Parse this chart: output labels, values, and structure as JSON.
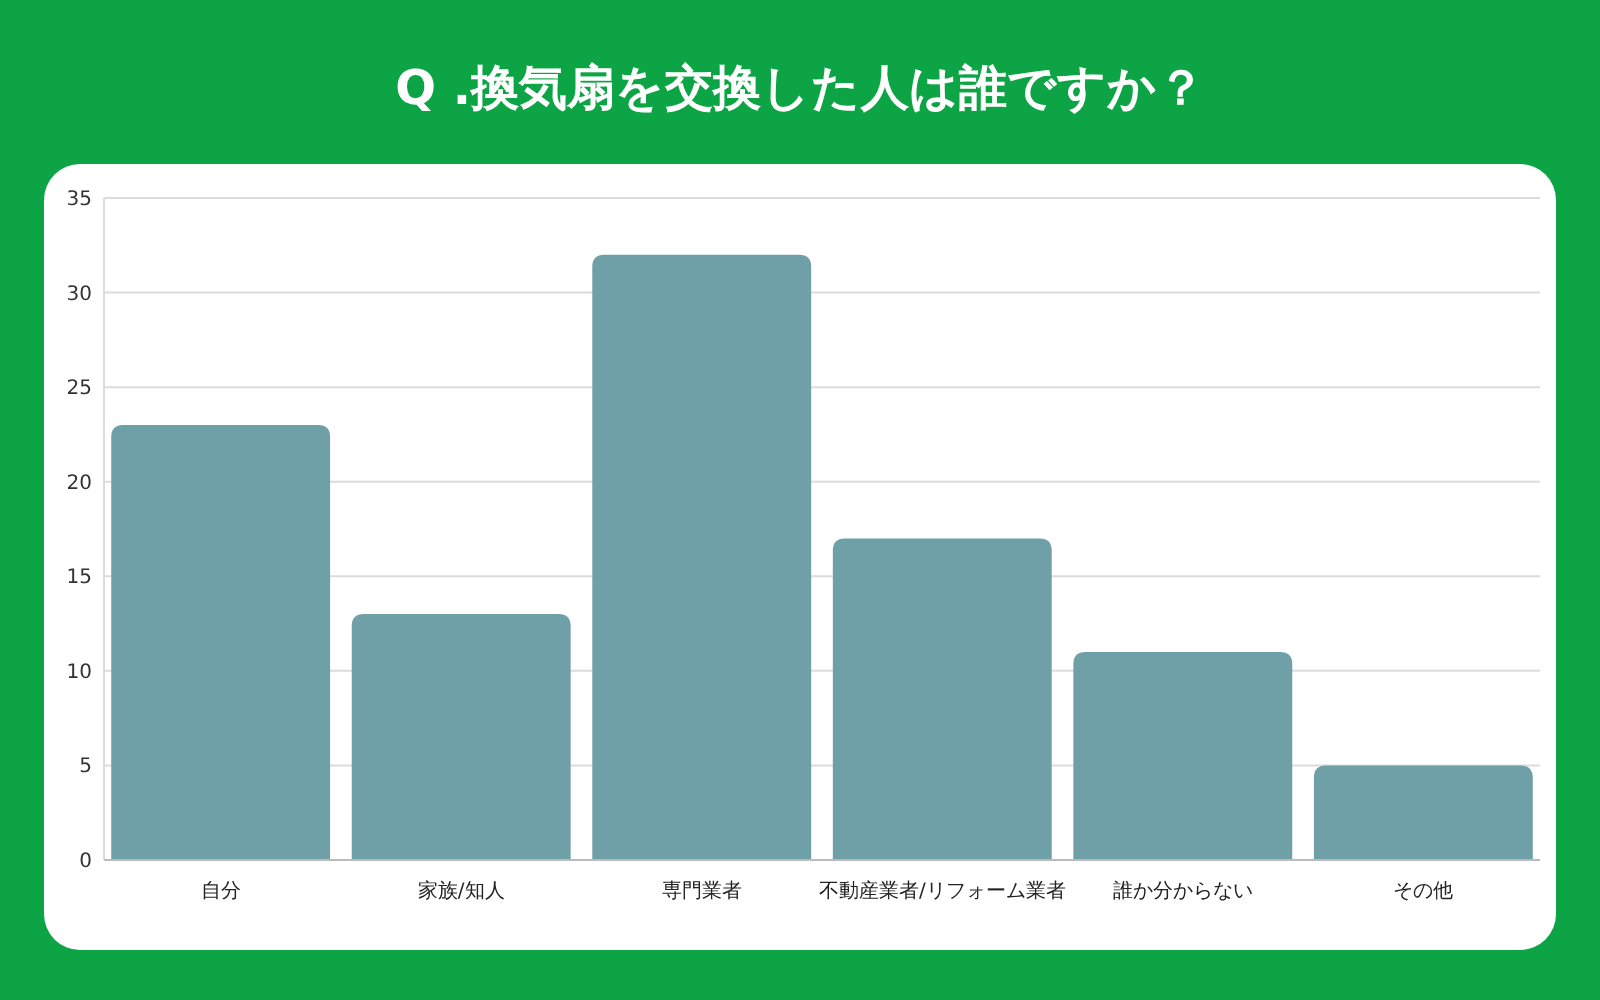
{
  "chart_data": {
    "type": "bar",
    "title": "Q .換気扇を交換した人は誰ですか？",
    "categories": [
      "自分",
      "家族/知人",
      "専門業者",
      "不動産業者/リフォーム業者",
      "誰か分からない",
      "その他"
    ],
    "values": [
      23,
      13,
      32,
      17,
      11,
      5
    ],
    "color": "#6fa0a8",
    "ylim": [
      0,
      35
    ],
    "yticks": [
      0,
      5,
      10,
      15,
      20,
      25,
      30,
      35
    ],
    "grid": "y"
  }
}
